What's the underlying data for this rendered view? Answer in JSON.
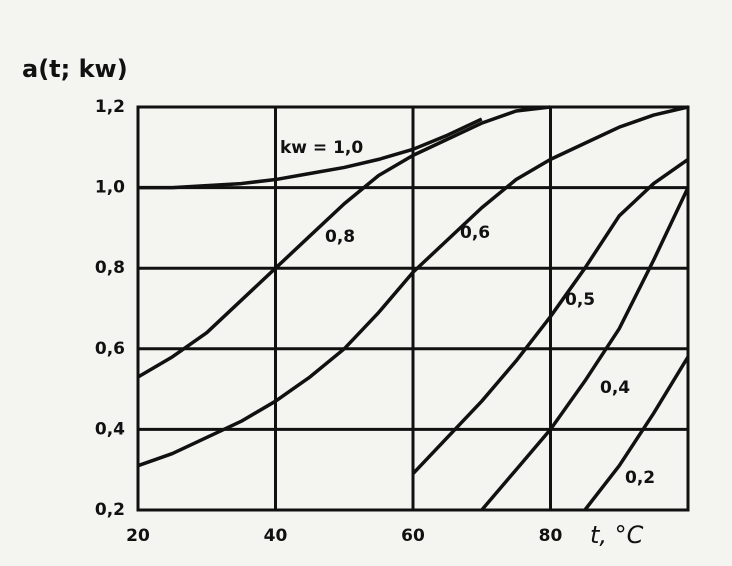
{
  "chart_data": {
    "type": "line",
    "y_label": "a(t; kw)",
    "x_label": "t, °C",
    "x": [
      20,
      25,
      30,
      35,
      40,
      45,
      50,
      55,
      60,
      65,
      70,
      75,
      80,
      85,
      90,
      95,
      100
    ],
    "xlim": [
      20,
      100
    ],
    "xticks": [
      20,
      40,
      60,
      80
    ],
    "ylim": [
      0.2,
      1.2
    ],
    "yticks": [
      {
        "value": 0.2,
        "label": "0,2"
      },
      {
        "value": 0.4,
        "label": "0,4"
      },
      {
        "value": 0.6,
        "label": "0,6"
      },
      {
        "value": 0.8,
        "label": "0,8"
      },
      {
        "value": 1.0,
        "label": "1,0"
      },
      {
        "value": 1.2,
        "label": "1,2"
      }
    ],
    "grid": true,
    "color": "#111111",
    "series": [
      {
        "name": "kw = 1,0",
        "color": "#111111",
        "values": [
          1.0,
          1.0,
          1.005,
          1.01,
          1.02,
          1.035,
          1.05,
          1.07,
          1.095,
          1.13,
          1.17,
          null,
          null,
          null,
          null,
          null,
          null
        ]
      },
      {
        "name": "0,8",
        "color": "#111111",
        "values": [
          0.53,
          0.58,
          0.64,
          0.72,
          0.8,
          0.88,
          0.96,
          1.03,
          1.08,
          1.12,
          1.16,
          1.19,
          1.2,
          null,
          null,
          null,
          null
        ]
      },
      {
        "name": "0,6",
        "color": "#111111",
        "values": [
          0.31,
          0.34,
          0.38,
          0.42,
          0.47,
          0.53,
          0.6,
          0.69,
          0.79,
          0.87,
          0.95,
          1.02,
          1.07,
          1.11,
          1.15,
          1.18,
          1.2
        ]
      },
      {
        "name": "0,5",
        "color": "#111111",
        "values": [
          null,
          null,
          null,
          null,
          null,
          null,
          null,
          null,
          0.29,
          0.38,
          0.47,
          0.57,
          0.68,
          0.8,
          0.93,
          1.01,
          1.07
        ]
      },
      {
        "name": "0,4",
        "color": "#111111",
        "values": [
          null,
          null,
          null,
          null,
          null,
          null,
          null,
          null,
          null,
          null,
          0.2,
          0.3,
          0.4,
          0.52,
          0.65,
          0.82,
          1.0
        ]
      },
      {
        "name": "0,2",
        "color": "#111111",
        "values": [
          null,
          null,
          null,
          null,
          null,
          null,
          null,
          null,
          null,
          null,
          null,
          null,
          null,
          0.2,
          0.31,
          0.44,
          0.58
        ]
      }
    ]
  }
}
